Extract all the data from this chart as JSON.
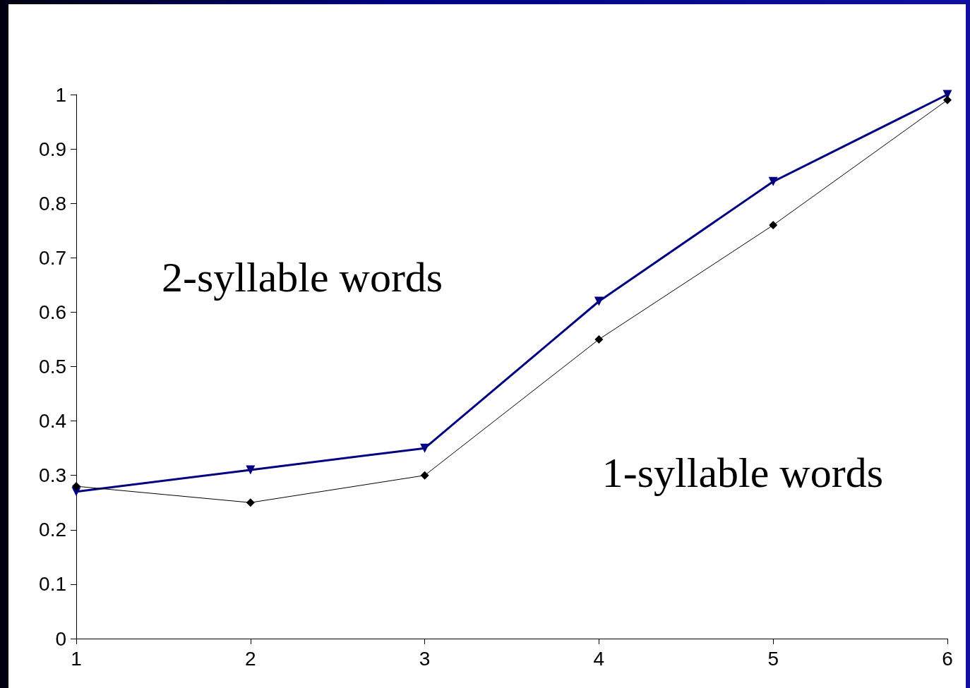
{
  "chart_data": {
    "type": "line",
    "x": [
      1,
      2,
      3,
      4,
      5,
      6
    ],
    "xlim": [
      1,
      6
    ],
    "xticks": [
      1,
      2,
      3,
      4,
      5,
      6
    ],
    "ylim": [
      0,
      1
    ],
    "yticks": [
      0,
      0.1,
      0.2,
      0.3,
      0.4,
      0.5,
      0.6,
      0.7,
      0.8,
      0.9,
      1
    ],
    "grid": false,
    "legend": false,
    "series": [
      {
        "name": "2-syllable words",
        "color": "#000080",
        "marker": "triangle",
        "values": [
          0.27,
          0.31,
          0.35,
          0.62,
          0.84,
          1.0
        ]
      },
      {
        "name": "1-syllable words",
        "color": "#000000",
        "marker": "diamond",
        "values": [
          0.28,
          0.25,
          0.3,
          0.55,
          0.76,
          0.99
        ]
      }
    ]
  }
}
